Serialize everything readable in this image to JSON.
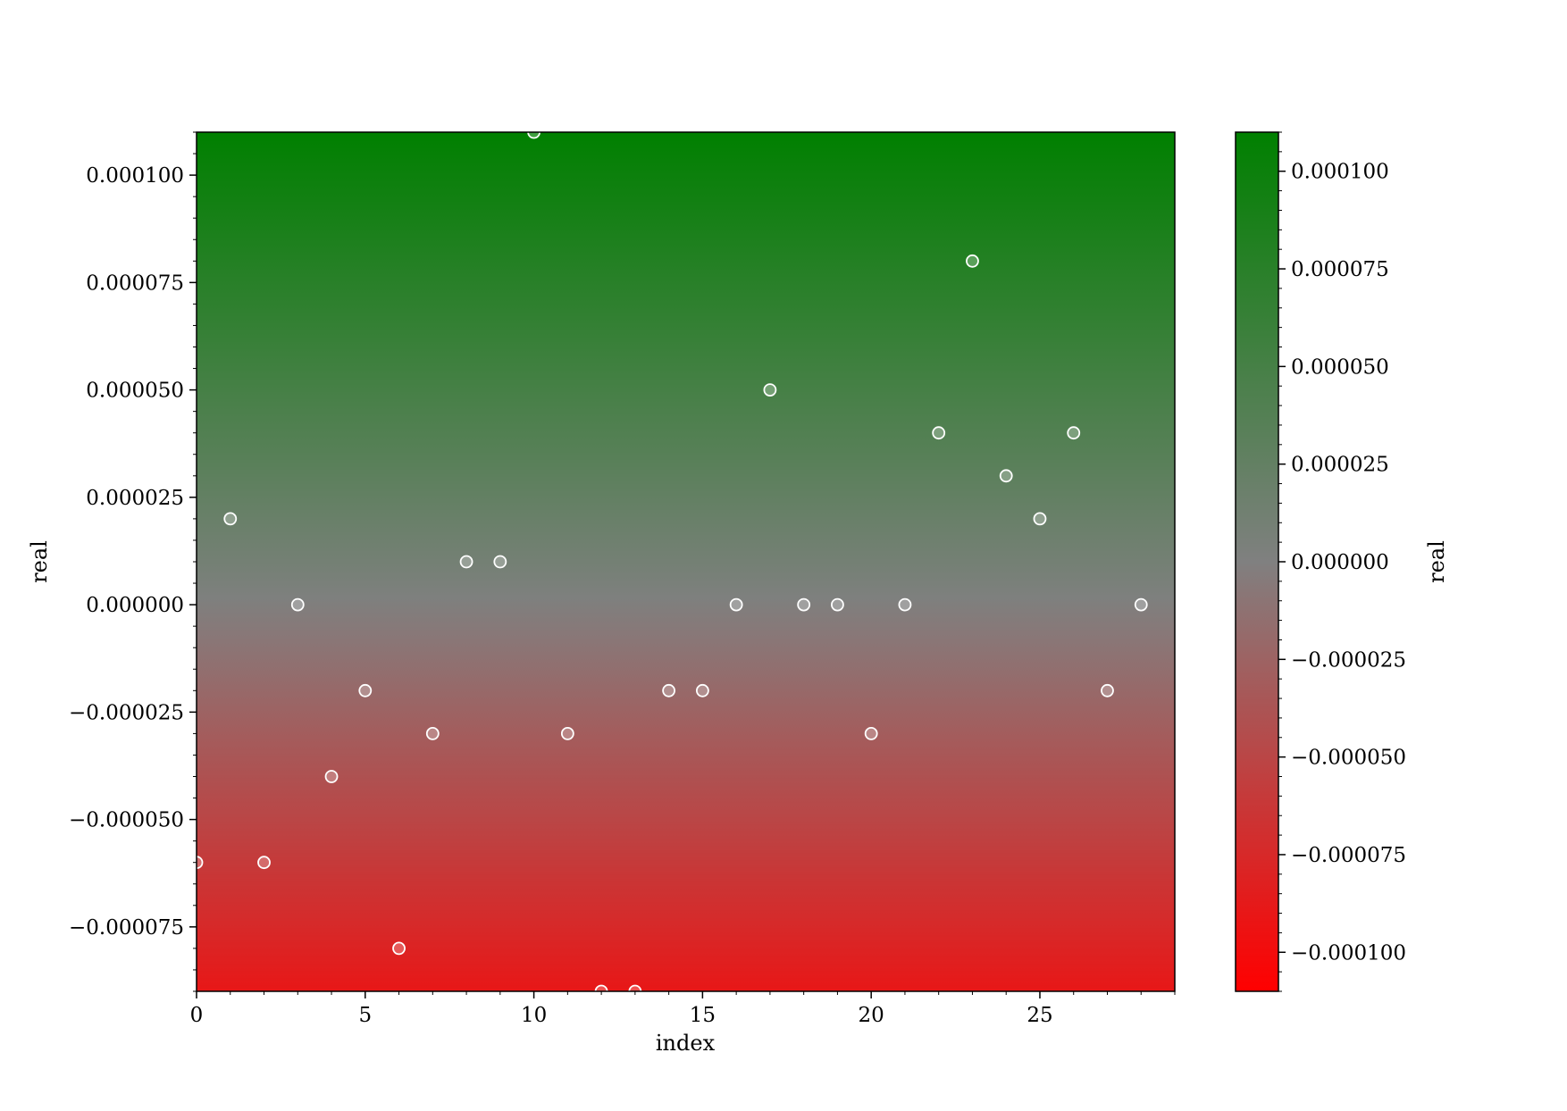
{
  "chart_data": {
    "type": "scatter",
    "title": "",
    "xlabel": "index",
    "ylabel": "real",
    "colorbar_label": "real",
    "xlim": [
      0,
      29
    ],
    "ylim": [
      -9e-05,
      0.00011
    ],
    "colorbar_lim": [
      -0.00011,
      0.00011
    ],
    "x_ticks": [
      0,
      5,
      10,
      15,
      20,
      25
    ],
    "x_tick_labels": [
      "0",
      "5",
      "10",
      "15",
      "20",
      "25"
    ],
    "y_ticks": [
      -7.5e-05,
      -5e-05,
      -2.5e-05,
      0,
      2.5e-05,
      5e-05,
      7.5e-05,
      0.0001
    ],
    "y_tick_labels": [
      "−0.000075",
      "−0.000050",
      "−0.000025",
      "0.000000",
      "0.000025",
      "0.000050",
      "0.000075",
      "0.000100"
    ],
    "colorbar_ticks": [
      -0.0001,
      -7.5e-05,
      -5e-05,
      -2.5e-05,
      0,
      2.5e-05,
      5e-05,
      7.5e-05,
      0.0001
    ],
    "colorbar_tick_labels": [
      "−0.000100",
      "−0.000075",
      "−0.000050",
      "−0.000025",
      "0.000000",
      "0.000025",
      "0.000050",
      "0.000075",
      "0.000100"
    ],
    "grid": false,
    "legend": "none",
    "colors": {
      "positive": "#008000",
      "zero": "#808080",
      "negative": "#ff0000",
      "marker_edge": "#ffffff"
    },
    "series": [
      {
        "x": [
          0,
          1,
          2,
          3,
          4,
          5,
          6,
          7,
          8,
          9,
          10,
          11,
          12,
          13,
          14,
          15,
          16,
          17,
          18,
          19,
          20,
          21,
          22,
          23,
          24,
          25,
          26,
          27,
          28
        ],
        "y": [
          -6e-05,
          2e-05,
          -6e-05,
          0,
          -4e-05,
          -2e-05,
          -8e-05,
          -3e-05,
          1e-05,
          1e-05,
          0.00011,
          -3e-05,
          -9e-05,
          -9e-05,
          -2e-05,
          -2e-05,
          0,
          5e-05,
          0,
          0,
          -3e-05,
          0,
          4e-05,
          8e-05,
          3e-05,
          2e-05,
          4e-05,
          -2e-05,
          0
        ]
      }
    ]
  }
}
